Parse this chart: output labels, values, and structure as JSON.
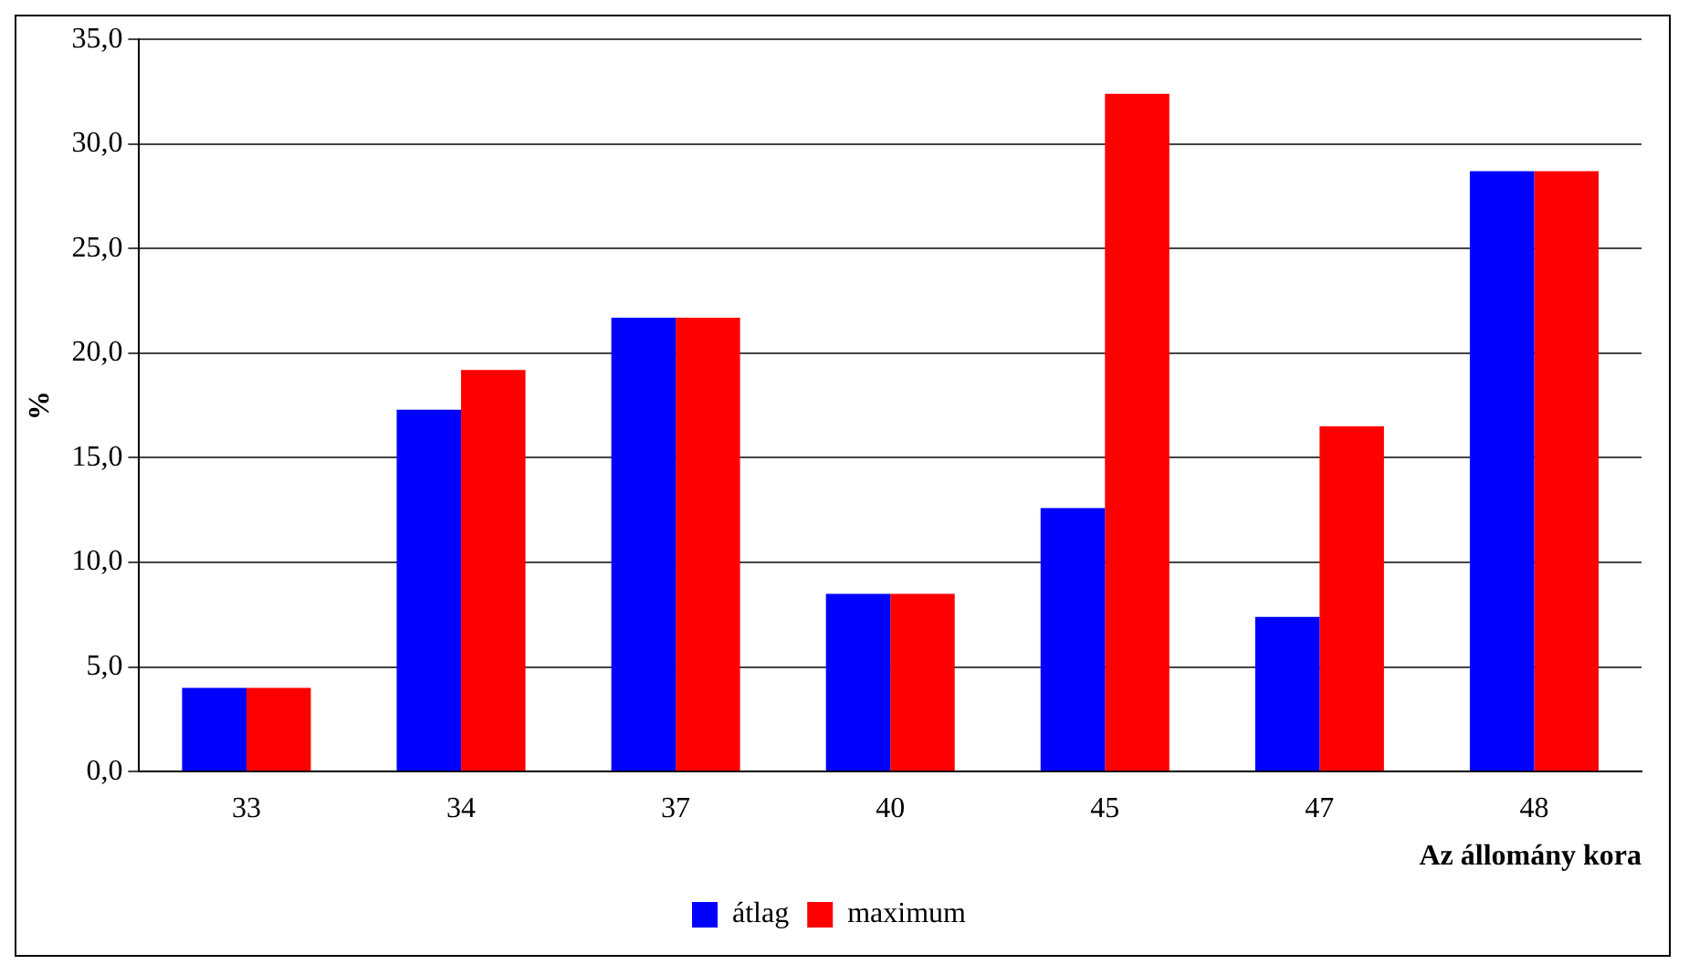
{
  "chart_data": {
    "type": "bar",
    "xlabel": "Az állomány kora",
    "ylabel": "%",
    "categories": [
      "33",
      "34",
      "37",
      "40",
      "45",
      "47",
      "48"
    ],
    "series": [
      {
        "name": "átlag",
        "color": "#0000ff",
        "values": [
          4.0,
          17.3,
          21.7,
          8.5,
          12.6,
          7.4,
          28.7
        ]
      },
      {
        "name": "maximum",
        "color": "#ff0000",
        "values": [
          4.0,
          19.2,
          21.7,
          8.5,
          32.4,
          16.5,
          28.7
        ]
      }
    ],
    "ylim": [
      0,
      35
    ],
    "yticks": [
      {
        "value": 0,
        "label": "0,0"
      },
      {
        "value": 5,
        "label": "5,0"
      },
      {
        "value": 10,
        "label": "10,0"
      },
      {
        "value": 15,
        "label": "15,0"
      },
      {
        "value": 20,
        "label": "20,0"
      },
      {
        "value": 25,
        "label": "25,0"
      },
      {
        "value": 30,
        "label": "30,0"
      },
      {
        "value": 35,
        "label": "35,0"
      }
    ],
    "grid": "y",
    "legend": "bottom"
  }
}
